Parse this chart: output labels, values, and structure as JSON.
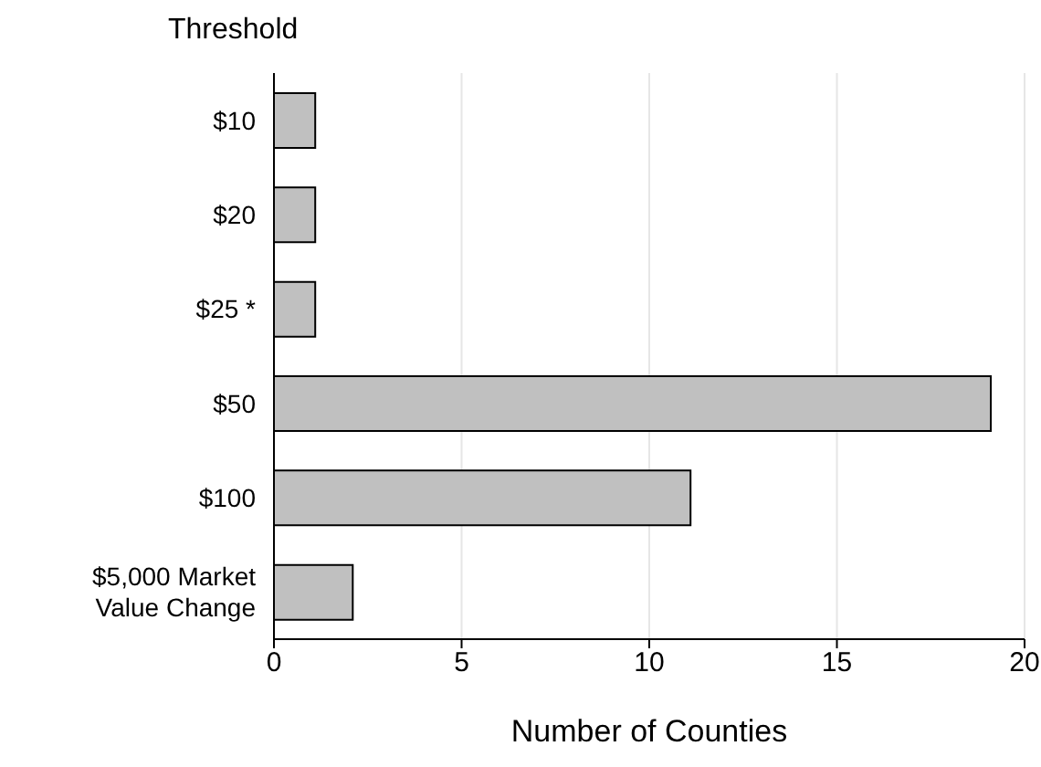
{
  "chart_data": {
    "type": "bar",
    "orientation": "horizontal",
    "ylabel": "Threshold",
    "xlabel": "Number of Counties",
    "categories": [
      "$10",
      "$20",
      "$25 *",
      "$50",
      "$100",
      "$5,000 Market Value Change"
    ],
    "values": [
      1.1,
      1.1,
      1.1,
      19.1,
      11.1,
      2.1
    ],
    "color": "#c0c0c0",
    "xlim": [
      0,
      20
    ],
    "xticks": [
      0,
      5,
      10,
      15,
      20
    ],
    "grid": "x"
  }
}
